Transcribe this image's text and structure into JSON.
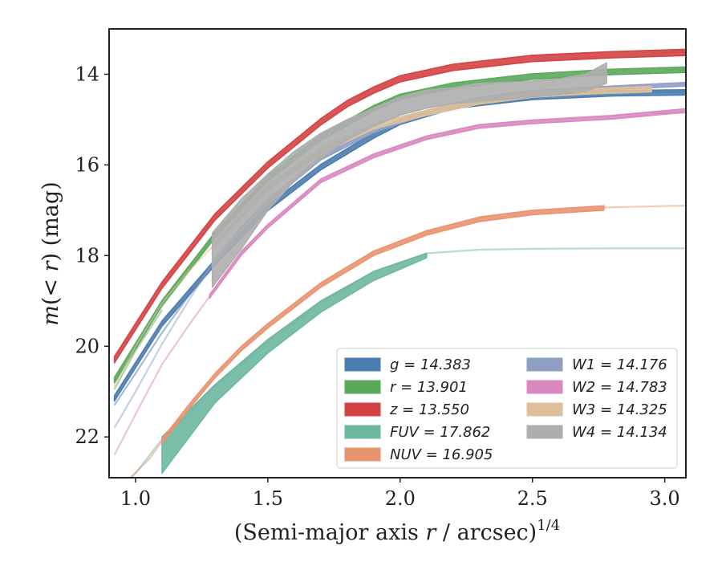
{
  "chart_data": {
    "type": "line",
    "xlabel": "(Semi-major axis r / arcsec)",
    "xlabel_parts": {
      "pre": "(Semi-major axis ",
      "var": "r",
      "post": " / arcsec)",
      "sup": "1/4"
    },
    "ylabel": "m(< r) (mag)",
    "ylabel_parts": {
      "m": "m",
      "open": "(",
      "lt": "< ",
      "r": "r",
      "close": ")",
      "unit": " (mag)"
    },
    "xlim": [
      0.9,
      3.08
    ],
    "ylim": [
      22.9,
      13.0
    ],
    "y_inverted": true,
    "xticks": [
      1.0,
      1.5,
      2.0,
      2.5,
      3.0
    ],
    "xtick_labels": [
      "1.0",
      "1.5",
      "2.0",
      "2.5",
      "3.0"
    ],
    "yticks": [
      14,
      16,
      18,
      20,
      22
    ],
    "ytick_labels": [
      "14",
      "16",
      "18",
      "20",
      "22"
    ],
    "legend_position": "lower-right",
    "legend_columns": 2,
    "series": [
      {
        "name": "g",
        "label": "g = 14.383",
        "color": "#4c7db0",
        "band": {
          "x": [
            0.92,
            1.1,
            1.3,
            1.5,
            1.7,
            1.9,
            2.0,
            2.2,
            2.5,
            2.8,
            3.08
          ],
          "y": [
            21.15,
            19.5,
            18.15,
            16.95,
            16.05,
            15.35,
            15.05,
            14.7,
            14.5,
            14.42,
            14.4
          ],
          "width": 0.12
        },
        "faint": {
          "x": [
            0.92,
            1.0,
            1.1,
            1.2,
            1.3
          ],
          "y": [
            21.3,
            20.6,
            19.7,
            18.9,
            18.2
          ]
        },
        "faint_tail": {
          "x": [
            2.9,
            3.08
          ],
          "y": [
            14.4,
            14.38
          ]
        }
      },
      {
        "name": "r",
        "label": "r = 13.901",
        "color": "#5aa95a",
        "band": {
          "x": [
            0.92,
            1.1,
            1.3,
            1.5,
            1.7,
            1.9,
            2.0,
            2.2,
            2.5,
            2.8,
            3.08
          ],
          "y": [
            20.75,
            19.05,
            17.55,
            16.3,
            15.4,
            14.75,
            14.5,
            14.25,
            14.05,
            13.95,
            13.9
          ],
          "width": 0.12
        },
        "faint": {
          "x": [
            0.92,
            1.0,
            1.1
          ],
          "y": [
            20.95,
            20.1,
            19.2
          ]
        },
        "faint_tail": {
          "x": [
            3.0,
            3.08
          ],
          "y": [
            13.9,
            13.9
          ]
        }
      },
      {
        "name": "z",
        "label": "z = 13.550",
        "color": "#d44343",
        "band": {
          "x": [
            0.92,
            1.1,
            1.3,
            1.5,
            1.7,
            1.8,
            1.9,
            2.0,
            2.2,
            2.5,
            2.8,
            3.08
          ],
          "y": [
            20.3,
            18.65,
            17.15,
            16.0,
            15.05,
            14.65,
            14.35,
            14.1,
            13.85,
            13.65,
            13.57,
            13.52
          ],
          "width": 0.14
        },
        "faint": {
          "x": [
            2.95,
            3.08
          ],
          "y": [
            13.54,
            13.5
          ]
        }
      },
      {
        "name": "FUV",
        "label": "FUV = 17.862",
        "color": "#6db7a0",
        "band": {
          "x": [
            1.1,
            1.3,
            1.5,
            1.7,
            1.9,
            2.1
          ],
          "y_top": [
            22.0,
            20.85,
            19.85,
            19.0,
            18.35,
            17.95
          ],
          "y_bot": [
            22.8,
            21.25,
            20.15,
            19.25,
            18.55,
            18.05
          ]
        },
        "faint": {
          "x": [
            0.95,
            1.0,
            1.1,
            1.2,
            1.3,
            1.5,
            1.7,
            1.9,
            2.1,
            2.3,
            2.5,
            2.8,
            3.08
          ],
          "y": [
            23.1,
            22.8,
            22.05,
            21.5,
            20.9,
            19.9,
            19.05,
            18.35,
            17.95,
            17.87,
            17.85,
            17.84,
            17.84
          ]
        }
      },
      {
        "name": "NUV",
        "label": "NUV = 16.905",
        "color": "#e99470",
        "band": {
          "x": [
            1.1,
            1.2,
            1.3,
            1.4,
            1.5,
            1.7,
            1.9,
            2.1,
            2.3,
            2.5,
            2.77
          ],
          "y": [
            22.1,
            21.35,
            20.65,
            20.05,
            19.55,
            18.65,
            17.95,
            17.5,
            17.2,
            17.05,
            16.95
          ],
          "width": 0.1
        },
        "faint": {
          "x": [
            0.98,
            1.05,
            1.1
          ],
          "y": [
            22.9,
            22.5,
            22.1
          ]
        },
        "faint_tail": {
          "x": [
            2.77,
            2.9,
            3.08
          ],
          "y": [
            16.94,
            16.92,
            16.9
          ]
        }
      },
      {
        "name": "W1",
        "label": "W1 = 14.176",
        "color": "#8f9fc4",
        "band": {
          "x": [
            1.3,
            1.4,
            1.5,
            1.7,
            1.9,
            2.1,
            2.3,
            2.5,
            2.8,
            3.08
          ],
          "y": [
            18.1,
            17.4,
            16.8,
            15.85,
            15.25,
            14.85,
            14.55,
            14.4,
            14.3,
            14.22
          ],
          "width": 0.08
        },
        "faint": {
          "x": [
            0.92,
            1.0,
            1.1,
            1.2,
            1.3
          ],
          "y": [
            21.8,
            21.0,
            19.95,
            19.0,
            18.1
          ]
        }
      },
      {
        "name": "W2",
        "label": "W2 = 14.783",
        "color": "#d988c0",
        "band": {
          "x": [
            1.28,
            1.4,
            1.5,
            1.7,
            1.9,
            2.1,
            2.3,
            2.5,
            2.8,
            3.08
          ],
          "y": [
            18.9,
            17.95,
            17.35,
            16.35,
            15.8,
            15.4,
            15.15,
            15.05,
            14.95,
            14.8
          ],
          "width": 0.08
        },
        "faint": {
          "x": [
            0.92,
            1.0,
            1.1,
            1.2,
            1.28
          ],
          "y": [
            22.4,
            21.5,
            20.4,
            19.55,
            18.9
          ]
        },
        "faint_tail": {
          "x": [
            2.95,
            3.08
          ],
          "y": [
            14.85,
            14.85
          ]
        }
      },
      {
        "name": "W3",
        "label": "W3 = 14.325",
        "color": "#ddc09a",
        "band": {
          "x": [
            1.3,
            1.5,
            1.7,
            1.9,
            2.1,
            2.3,
            2.5,
            2.7,
            2.95
          ],
          "y": [
            17.75,
            16.5,
            15.7,
            15.15,
            14.85,
            14.6,
            14.45,
            14.38,
            14.33
          ],
          "width": 0.12
        },
        "faint": {
          "x": [
            0.92,
            1.0,
            1.1,
            1.2,
            1.3
          ],
          "y": [
            20.9,
            20.0,
            19.05,
            18.35,
            17.75
          ]
        }
      },
      {
        "name": "W4",
        "label": "W4 = 14.134",
        "color": "#aeaeae",
        "band": {
          "x": [
            1.29,
            1.4,
            1.5,
            1.6,
            1.7,
            1.8,
            1.9,
            2.0,
            2.1,
            2.2,
            2.3,
            2.4,
            2.5,
            2.6,
            2.7,
            2.78
          ],
          "y_top": [
            17.5,
            16.75,
            16.2,
            15.7,
            15.3,
            15.0,
            14.75,
            14.5,
            14.35,
            14.3,
            14.2,
            14.18,
            14.15,
            14.1,
            14.0,
            13.75
          ],
          "y_bot": [
            18.7,
            17.85,
            17.0,
            16.35,
            15.85,
            15.45,
            15.15,
            14.9,
            14.75,
            14.65,
            14.6,
            14.55,
            14.5,
            14.45,
            14.38,
            14.2
          ]
        }
      }
    ]
  }
}
